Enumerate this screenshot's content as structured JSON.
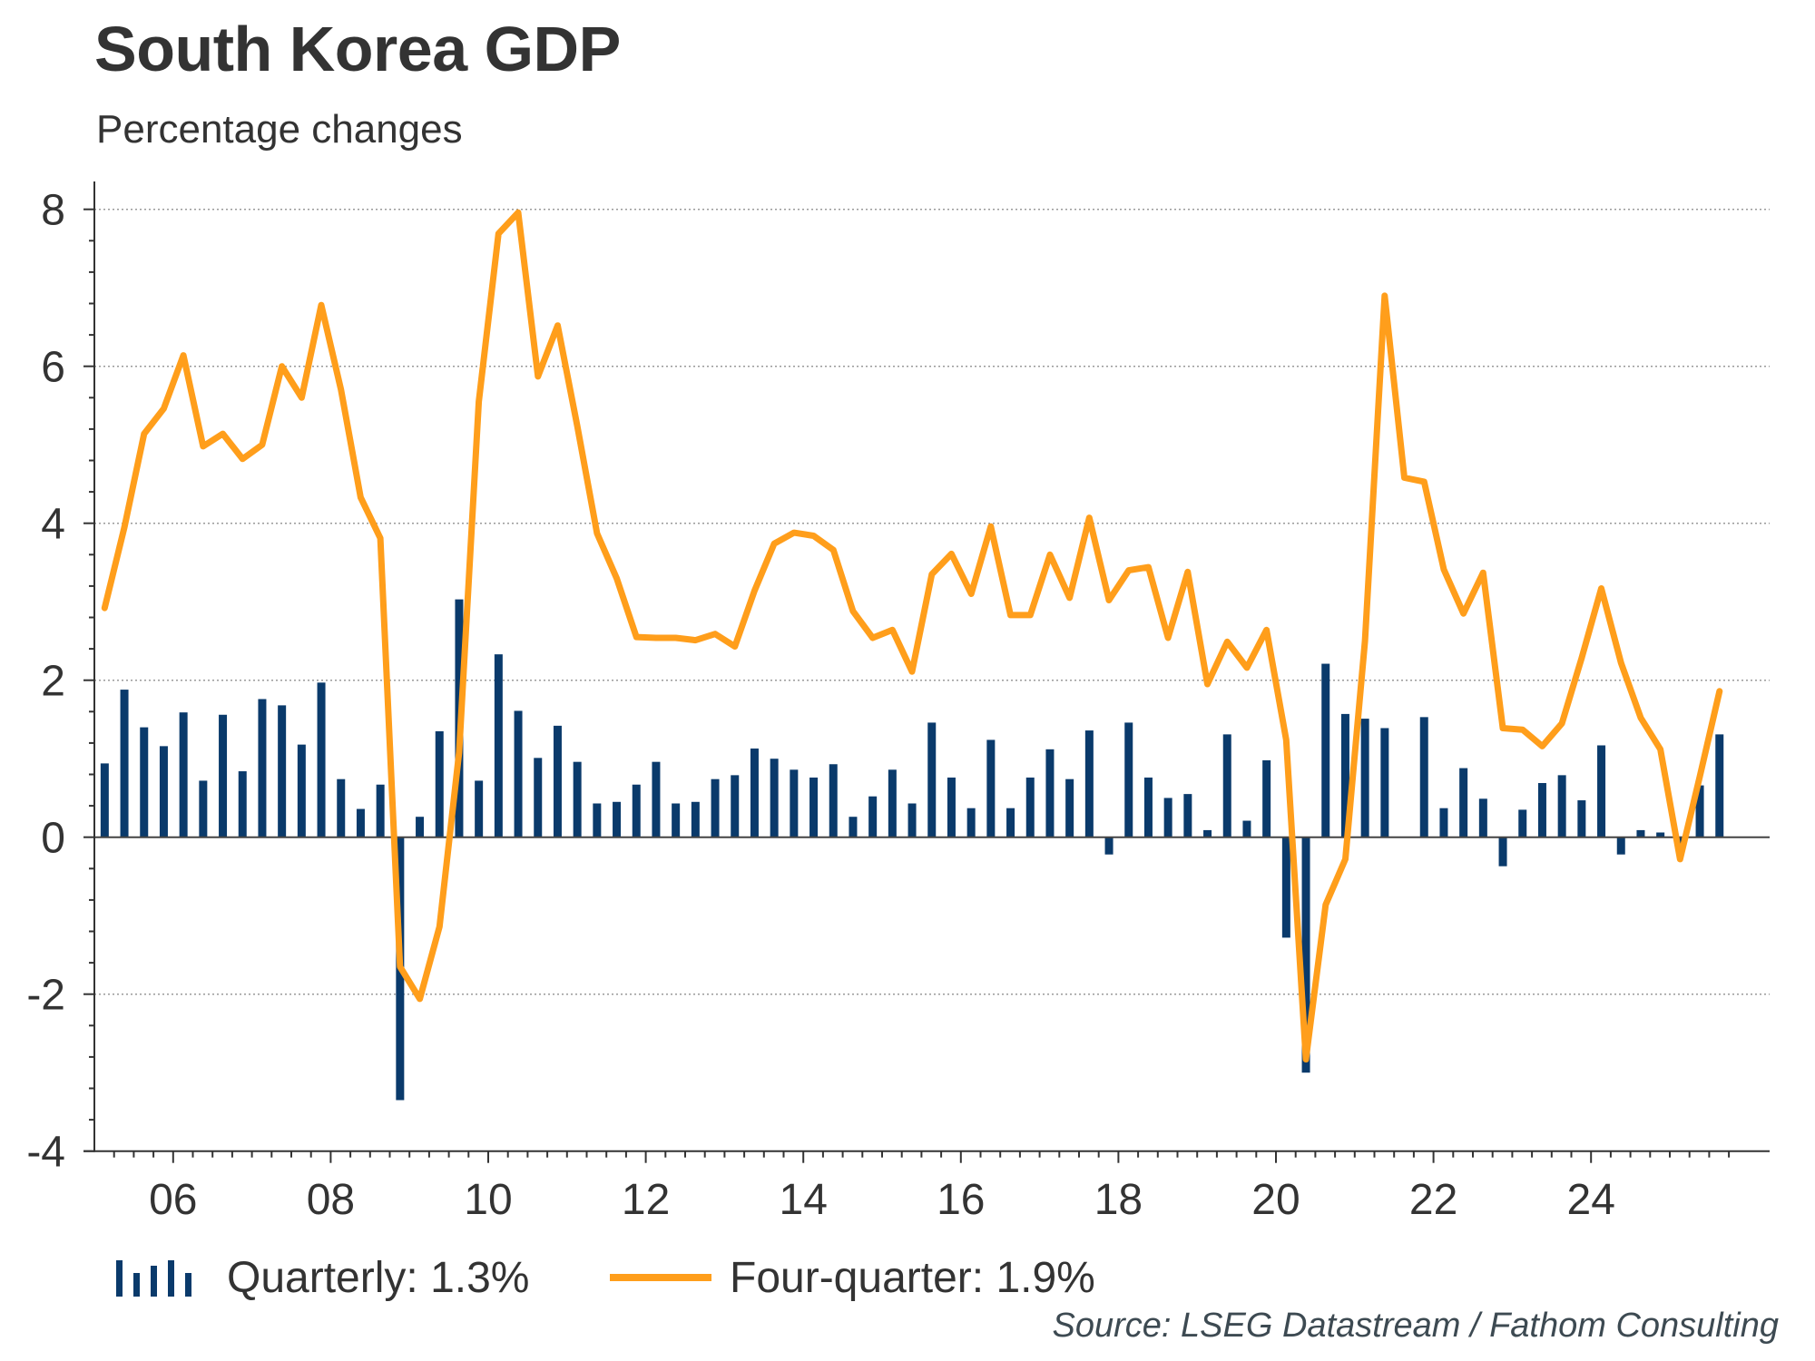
{
  "header": {
    "title": "South Korea GDP",
    "subtitle": "Percentage changes"
  },
  "legend": {
    "quarterly_label": "Quarterly: 1.3%",
    "four_quarter_label": "Four-quarter: 1.9%"
  },
  "source": "Source: LSEG Datastream / Fathom Consulting",
  "colors": {
    "quarterly": "#0a3a6b",
    "four_quarter": "#ff9e1b",
    "axis": "#333333",
    "grid": "#9a9a9a"
  },
  "chart_data": {
    "type": "bar+line",
    "title": "South Korea GDP",
    "subtitle": "Percentage changes",
    "xlabel": "",
    "ylabel": "",
    "ylim": [
      -4,
      8
    ],
    "yticks": [
      -4,
      -2,
      0,
      2,
      4,
      6,
      8
    ],
    "y_minor_step": 0.4,
    "grid": "horizontal dotted at major y ticks",
    "x_start": "2005Q1",
    "x_end_axis": "2025Q4",
    "xtick_labels": [
      {
        "year": 2006,
        "label": "06"
      },
      {
        "year": 2008,
        "label": "08"
      },
      {
        "year": 2010,
        "label": "10"
      },
      {
        "year": 2012,
        "label": "12"
      },
      {
        "year": 2014,
        "label": "14"
      },
      {
        "year": 2016,
        "label": "16"
      },
      {
        "year": 2018,
        "label": "18"
      },
      {
        "year": 2020,
        "label": "20"
      },
      {
        "year": 2022,
        "label": "22"
      },
      {
        "year": 2024,
        "label": "24"
      }
    ],
    "legend_position": "bottom-left",
    "series": [
      {
        "name": "Quarterly",
        "latest": "1.3%",
        "type": "bar",
        "start": "2005Q1",
        "values": [
          0.94,
          1.88,
          1.4,
          1.16,
          1.59,
          0.72,
          1.56,
          0.84,
          1.76,
          1.68,
          1.18,
          1.97,
          0.74,
          0.36,
          0.67,
          -3.35,
          0.26,
          1.35,
          3.03,
          0.72,
          2.33,
          1.61,
          1.01,
          1.42,
          0.96,
          0.43,
          0.45,
          0.67,
          0.96,
          0.43,
          0.45,
          0.74,
          0.79,
          1.13,
          1.0,
          0.86,
          0.76,
          0.93,
          0.26,
          0.52,
          0.86,
          0.43,
          1.46,
          0.76,
          0.37,
          1.24,
          0.37,
          0.76,
          1.12,
          0.74,
          1.36,
          -0.22,
          1.46,
          0.76,
          0.5,
          0.55,
          0.09,
          1.31,
          0.21,
          0.98,
          -1.28,
          -3.0,
          2.21,
          1.57,
          1.51,
          1.39,
          0.0,
          1.53,
          0.37,
          0.88,
          0.49,
          -0.37,
          0.35,
          0.69,
          0.79,
          0.47,
          1.17,
          -0.22,
          0.09,
          0.06,
          -0.2,
          0.66,
          1.31
        ]
      },
      {
        "name": "Four-quarter",
        "latest": "1.9%",
        "type": "line",
        "start": "2005Q1",
        "values": [
          2.92,
          3.95,
          5.14,
          5.46,
          6.14,
          4.98,
          5.14,
          4.82,
          5.0,
          6.0,
          5.6,
          6.78,
          5.7,
          4.33,
          3.81,
          -1.65,
          -2.06,
          -1.14,
          1.08,
          5.55,
          7.69,
          7.96,
          5.87,
          6.52,
          5.24,
          3.87,
          3.3,
          2.55,
          2.54,
          2.54,
          2.51,
          2.59,
          2.43,
          3.14,
          3.74,
          3.88,
          3.84,
          3.66,
          2.88,
          2.54,
          2.64,
          2.11,
          3.35,
          3.61,
          3.1,
          3.96,
          2.83,
          2.83,
          3.6,
          3.05,
          4.07,
          3.02,
          3.4,
          3.44,
          2.54,
          3.38,
          1.95,
          2.49,
          2.16,
          2.64,
          1.24,
          -2.83,
          -0.86,
          -0.28,
          2.5,
          6.9,
          4.58,
          4.53,
          3.41,
          2.85,
          3.37,
          1.39,
          1.37,
          1.16,
          1.45,
          2.28,
          3.17,
          2.22,
          1.52,
          1.12,
          -0.28,
          0.77,
          1.86
        ]
      }
    ]
  }
}
